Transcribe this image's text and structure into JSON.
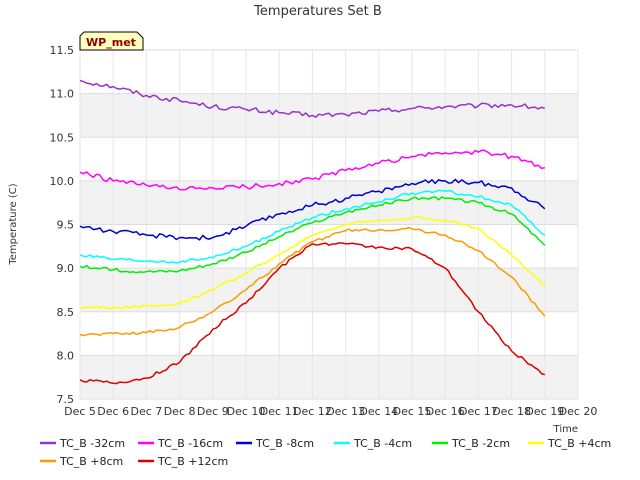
{
  "chart_data": {
    "type": "line",
    "title": "Temperatures Set B",
    "xlabel": "Time",
    "ylabel": "Temperature (C)",
    "badge": "WP_met",
    "x_ticks": [
      "Dec 5",
      "Dec 6",
      "Dec 7",
      "Dec 8",
      "Dec 9",
      "Dec 10",
      "Dec 11",
      "Dec 12",
      "Dec 13",
      "Dec 14",
      "Dec 15",
      "Dec 16",
      "Dec 17",
      "Dec 18",
      "Dec 19",
      "Dec 20"
    ],
    "y_ticks": [
      "7.5",
      "8.0",
      "8.5",
      "9.0",
      "9.5",
      "10.0",
      "10.5",
      "11.0",
      "11.5"
    ],
    "xlim": [
      "Dec 5",
      "Dec 20"
    ],
    "ylim": [
      7.5,
      11.5
    ],
    "grid": true,
    "legend_position": "bottom",
    "x": [
      "Dec 5",
      "Dec 6",
      "Dec 7",
      "Dec 8",
      "Dec 9",
      "Dec 10",
      "Dec 11",
      "Dec 12",
      "Dec 13",
      "Dec 14",
      "Dec 15",
      "Dec 16",
      "Dec 17",
      "Dec 18",
      "Dec 19"
    ],
    "series": [
      {
        "name": "TC_B -32cm",
        "color": "#9932cc",
        "values": [
          11.15,
          11.08,
          10.98,
          10.92,
          10.85,
          10.82,
          10.78,
          10.75,
          10.76,
          10.8,
          10.83,
          10.85,
          10.86,
          10.87,
          10.83
        ]
      },
      {
        "name": "TC_B -16cm",
        "color": "#ff00ff",
        "values": [
          10.1,
          10.0,
          9.95,
          9.9,
          9.92,
          9.93,
          9.97,
          10.02,
          10.12,
          10.2,
          10.28,
          10.32,
          10.33,
          10.28,
          10.15
        ]
      },
      {
        "name": "TC_B -8cm",
        "color": "#0000cc",
        "values": [
          9.48,
          9.42,
          9.38,
          9.35,
          9.35,
          9.48,
          9.62,
          9.72,
          9.8,
          9.88,
          9.97,
          10.0,
          9.98,
          9.92,
          9.68
        ]
      },
      {
        "name": "TC_B -4cm",
        "color": "#00ffff",
        "values": [
          9.15,
          9.1,
          9.08,
          9.07,
          9.12,
          9.25,
          9.42,
          9.58,
          9.68,
          9.76,
          9.86,
          9.88,
          9.82,
          9.72,
          9.38
        ]
      },
      {
        "name": "TC_B -2cm",
        "color": "#00ee00",
        "values": [
          9.02,
          8.98,
          8.96,
          8.97,
          9.05,
          9.18,
          9.36,
          9.52,
          9.64,
          9.72,
          9.8,
          9.8,
          9.75,
          9.62,
          9.26
        ]
      },
      {
        "name": "TC_B +4cm",
        "color": "#ffff00",
        "values": [
          8.55,
          8.55,
          8.56,
          8.6,
          8.75,
          8.95,
          9.15,
          9.38,
          9.5,
          9.55,
          9.58,
          9.55,
          9.45,
          9.15,
          8.8
        ]
      },
      {
        "name": "TC_B +8cm",
        "color": "#ff9900",
        "values": [
          8.24,
          8.25,
          8.26,
          8.32,
          8.5,
          8.75,
          9.05,
          9.3,
          9.43,
          9.44,
          9.45,
          9.38,
          9.2,
          8.9,
          8.45
        ]
      },
      {
        "name": "TC_B +12cm",
        "color": "#dd0000",
        "values": [
          7.72,
          7.68,
          7.74,
          7.92,
          8.3,
          8.6,
          9.0,
          9.28,
          9.28,
          9.24,
          9.22,
          9.0,
          8.5,
          8.05,
          7.78
        ]
      }
    ]
  }
}
